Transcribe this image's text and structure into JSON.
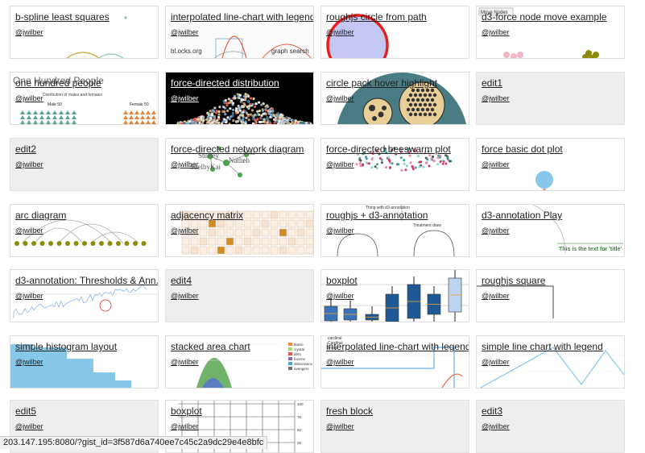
{
  "grid": {
    "author_label": "@jwilber",
    "cards": [
      {
        "title": "b-spline least squares",
        "thumb": "bspline"
      },
      {
        "title": "interpolated line-chart with legend",
        "thumb": "interp1",
        "extra": [
          "bl.ocks.org",
          "graph search"
        ]
      },
      {
        "title": "roughjs circle from path",
        "thumb": "circle"
      },
      {
        "title": "d3-force node move example",
        "thumb": "nodemove",
        "extra": [
          "Move Nodes"
        ]
      },
      {
        "title": "one hundred people",
        "thumb": "people",
        "extra": [
          "One Hundred People",
          "Distribution of males and females",
          "Male 50",
          "Female 50"
        ]
      },
      {
        "title": "force-directed distribution",
        "thumb": "distribution",
        "dark": true
      },
      {
        "title": "circle pack hover highlight",
        "thumb": "circlepack"
      },
      {
        "title": "edit1",
        "blank": true
      },
      {
        "title": "edit2",
        "blank": true
      },
      {
        "title": "force-directed network diagram",
        "thumb": "network",
        "extra": [
          "Sturley",
          "Sosi",
          "Natheh",
          "ShelbyKai"
        ]
      },
      {
        "title": "force-directed beeswarm plot",
        "thumb": "beeswarm"
      },
      {
        "title": "force basic dot plot",
        "thumb": "dotplot"
      },
      {
        "title": "arc diagram",
        "thumb": "arc"
      },
      {
        "title": "adjacency matrix",
        "thumb": "matrix"
      },
      {
        "title": "roughjs + d3-annotation",
        "thumb": "roughannot",
        "extra": [
          "Thing with d3-annotation",
          "Treatment draw"
        ]
      },
      {
        "title": "d3-annotation Play",
        "thumb": "annotplay",
        "extra": [
          "This is the text for 'title'"
        ]
      },
      {
        "title": "d3-annotation: Thresholds & Ann...",
        "thumb": "thresholds"
      },
      {
        "title": "edit4",
        "blank": true
      },
      {
        "title": "boxplot",
        "thumb": "boxplot1"
      },
      {
        "title": "roughjs square",
        "thumb": "square"
      },
      {
        "title": "simple histogram layout",
        "thumb": "histogram"
      },
      {
        "title": "stacked area chart",
        "thumb": "stacked",
        "extra": [
          "titanic",
          "crystal",
          "dent",
          "bourne",
          "deliverance",
          "avengers"
        ]
      },
      {
        "title": "interpolated line-chart with legend",
        "thumb": "interp2",
        "extra": [
          "cardinal",
          "Cardinal",
          "linear"
        ]
      },
      {
        "title": "simple line chart with legend",
        "thumb": "simpleline"
      },
      {
        "title": "edit5",
        "blank": true
      },
      {
        "title": "boxplot",
        "thumb": "boxplot2",
        "extra": [
          "100",
          "75",
          "50",
          "25"
        ]
      },
      {
        "title": "fresh block",
        "blank": true
      },
      {
        "title": "edit3",
        "blank": true
      }
    ]
  },
  "colors": {
    "brand_red": "#e8201b",
    "lavender": "#c4c6f4",
    "olive": "#8d8c0a",
    "pink": "#f2b6c6",
    "teal": "#3b8a9b",
    "tan": "#e8cf97",
    "steel": "#2c7fb8",
    "orange": "#d38b26",
    "green": "#71b36a",
    "lightblue": "#87c7ea"
  },
  "statusbar": {
    "url": "203.147.195:8080/?gist_id=3f587d6a740ee7c45c2a9dc29e4e8bfc"
  }
}
